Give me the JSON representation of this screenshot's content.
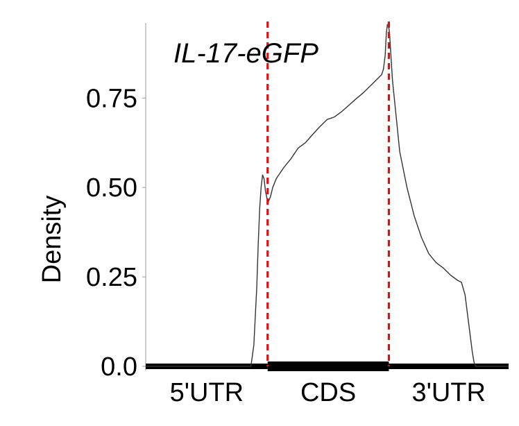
{
  "chart_data": {
    "type": "line",
    "title": "IL-17-eGFP",
    "xlabel": "",
    "ylabel": "Density",
    "ylim": [
      0,
      0.96
    ],
    "xlim": [
      0,
      1
    ],
    "yticks": [
      {
        "value": 0.0,
        "label": "0.0"
      },
      {
        "value": 0.25,
        "label": "0.25"
      },
      {
        "value": 0.5,
        "label": "0.50"
      },
      {
        "value": 0.75,
        "label": "0.75"
      }
    ],
    "regions": [
      {
        "label": "5'UTR",
        "start": 0.0,
        "end": 0.336
      },
      {
        "label": "CDS",
        "start": 0.336,
        "end": 0.67
      },
      {
        "label": "3'UTR",
        "start": 0.67,
        "end": 1.0
      }
    ],
    "boundaries": [
      0.336,
      0.67
    ],
    "boundary_color": "#dd1111",
    "line_color": "#333333",
    "series": [
      {
        "name": "IL-17-eGFP density",
        "x": [
          0.0,
          0.29,
          0.298,
          0.306,
          0.31,
          0.314,
          0.318,
          0.322,
          0.326,
          0.33,
          0.334,
          0.338,
          0.344,
          0.35,
          0.36,
          0.38,
          0.4,
          0.42,
          0.44,
          0.46,
          0.48,
          0.5,
          0.52,
          0.54,
          0.56,
          0.58,
          0.6,
          0.62,
          0.64,
          0.65,
          0.655,
          0.66,
          0.663,
          0.666,
          0.669,
          0.672,
          0.675,
          0.68,
          0.69,
          0.7,
          0.72,
          0.74,
          0.76,
          0.78,
          0.8,
          0.82,
          0.84,
          0.86,
          0.87,
          0.88,
          0.89,
          0.9,
          0.905,
          0.91,
          1.0
        ],
        "y": [
          0.0,
          0.0,
          0.06,
          0.22,
          0.34,
          0.44,
          0.5,
          0.535,
          0.525,
          0.49,
          0.47,
          0.46,
          0.475,
          0.5,
          0.525,
          0.555,
          0.58,
          0.61,
          0.625,
          0.648,
          0.67,
          0.69,
          0.697,
          0.712,
          0.73,
          0.748,
          0.765,
          0.785,
          0.805,
          0.815,
          0.83,
          0.87,
          0.93,
          0.955,
          0.955,
          0.93,
          0.88,
          0.8,
          0.7,
          0.6,
          0.5,
          0.42,
          0.36,
          0.315,
          0.29,
          0.275,
          0.255,
          0.24,
          0.235,
          0.2,
          0.12,
          0.04,
          0.01,
          0.0,
          0.0
        ]
      }
    ]
  }
}
